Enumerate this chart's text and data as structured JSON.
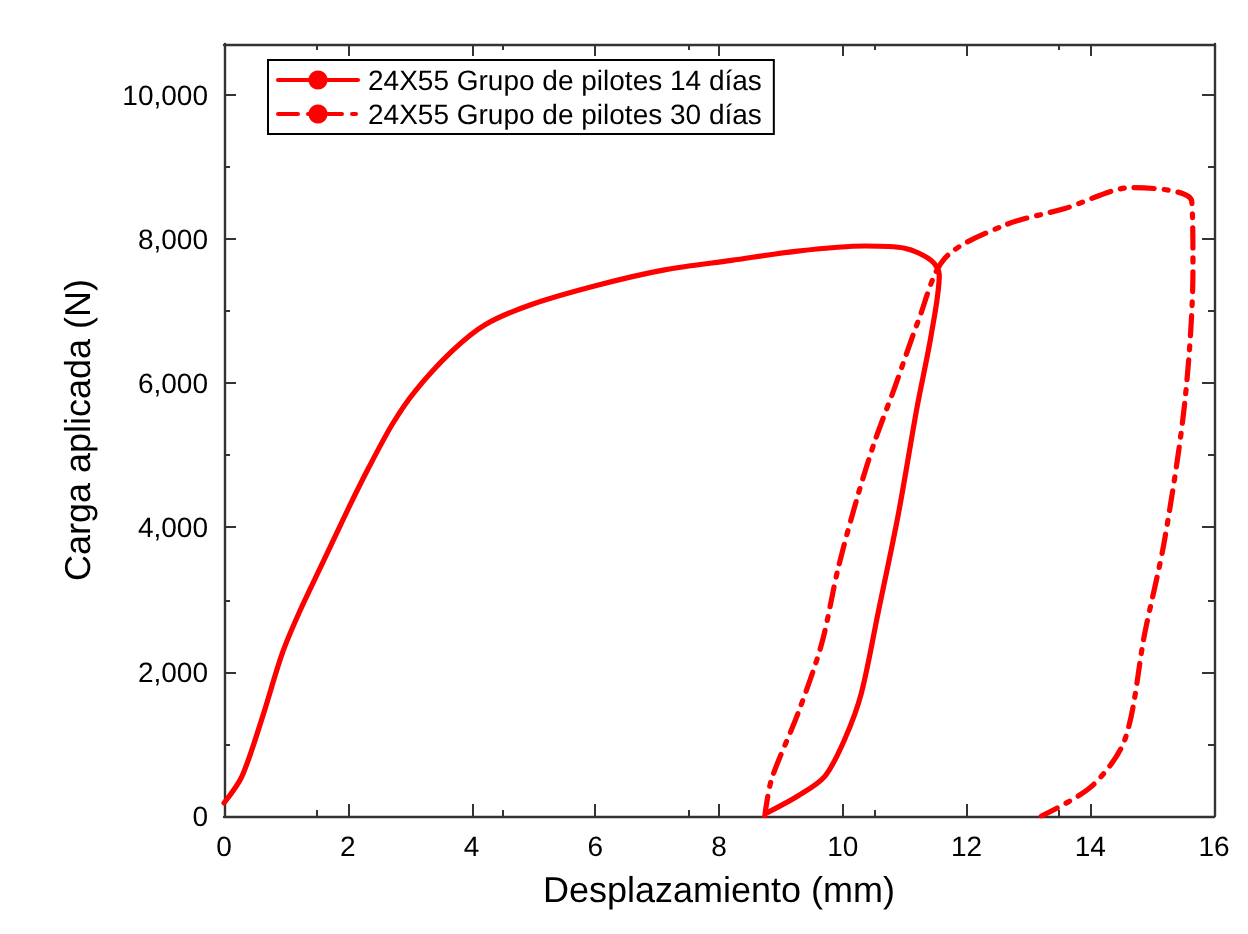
{
  "chart_data": {
    "type": "line",
    "xlabel": "Desplazamiento (mm)",
    "ylabel": "Carga aplicada (N)",
    "xlim": [
      0,
      16
    ],
    "xticks": [
      0,
      2,
      4,
      6,
      8,
      10,
      12,
      14,
      16
    ],
    "ylim": [
      0,
      10700
    ],
    "yticks": [
      {
        "value": 0,
        "label": "0"
      },
      {
        "value": 2000,
        "label": "2,000"
      },
      {
        "value": 4000,
        "label": "4,000"
      },
      {
        "value": 6000,
        "label": "6,000"
      },
      {
        "value": 8000,
        "label": "8,000"
      },
      {
        "value": 10000,
        "label": "10,000"
      }
    ],
    "grid": false,
    "legend": "top left",
    "marker": "none",
    "series": [
      {
        "name": "24X55 Grupo de pilotes 14 días",
        "color": "#ff0000",
        "line_style": "solid",
        "x": [
          0,
          0.29,
          0.61,
          0.94,
          1.21,
          1.59,
          2.02,
          2.34,
          2.72,
          3.09,
          3.68,
          4.22,
          4.97,
          6.05,
          7.12,
          8.2,
          9.27,
          10.36,
          11.0,
          11.43,
          11.56,
          11.43,
          11.2,
          10.9,
          10.57,
          10.3,
          10.03,
          9.71,
          9.28,
          8.79
        ],
        "values": [
          180,
          550,
          1340,
          2250,
          2810,
          3500,
          4280,
          4830,
          5430,
          5890,
          6440,
          6810,
          7090,
          7360,
          7570,
          7700,
          7830,
          7900,
          7870,
          7700,
          7500,
          6670,
          5660,
          4190,
          2810,
          1700,
          1060,
          550,
          280,
          50
        ]
      },
      {
        "name": "24X55 Grupo de pilotes 30 días",
        "color": "#ff0000",
        "line_style": "dashdot",
        "x": [
          8.74,
          8.85,
          9.28,
          9.66,
          9.93,
          10.25,
          10.52,
          10.84,
          11.22,
          11.65,
          12.62,
          13.59,
          14.67,
          15.64,
          15.66,
          15.53,
          15.2,
          14.88,
          14.56,
          14.02,
          13.21
        ],
        "values": [
          0,
          510,
          1430,
          2390,
          3450,
          4460,
          5200,
          5940,
          6860,
          7730,
          8190,
          8420,
          8710,
          8520,
          7590,
          5750,
          3820,
          2530,
          1060,
          410,
          0
        ]
      }
    ]
  }
}
